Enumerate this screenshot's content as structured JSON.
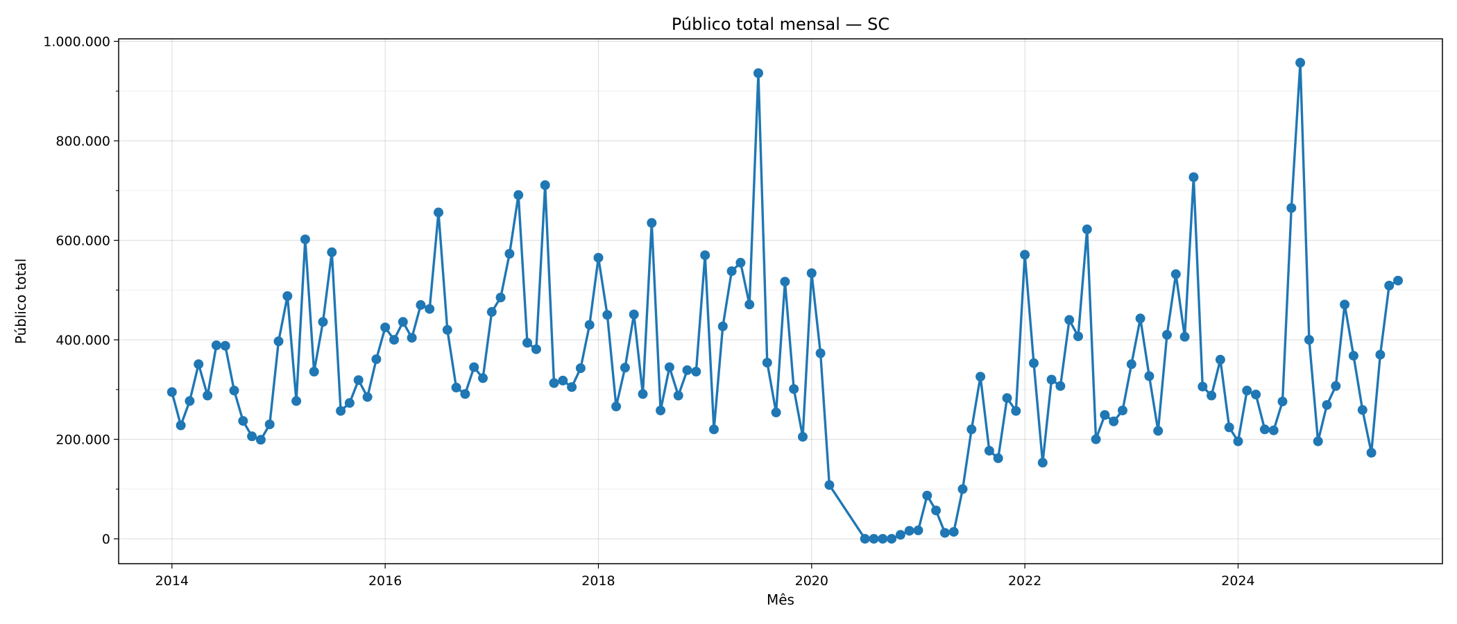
{
  "chart_data": {
    "type": "line",
    "title": "Público total mensal — SC",
    "xlabel": "Mês",
    "ylabel": "Público total",
    "x_ticks": [
      {
        "year": 2014,
        "label": "2014"
      },
      {
        "year": 2016,
        "label": "2016"
      },
      {
        "year": 2018,
        "label": "2018"
      },
      {
        "year": 2020,
        "label": "2020"
      },
      {
        "year": 2022,
        "label": "2022"
      },
      {
        "year": 2024,
        "label": "2024"
      }
    ],
    "y_ticks": [
      {
        "value": 0,
        "label": "0"
      },
      {
        "value": 200000,
        "label": "200.000"
      },
      {
        "value": 400000,
        "label": "400.000"
      },
      {
        "value": 600000,
        "label": "600.000"
      },
      {
        "value": 800000,
        "label": "800.000"
      },
      {
        "value": 1000000,
        "label": "1.000.000"
      }
    ],
    "xlim": [
      "2013-07",
      "2025-12"
    ],
    "ylim": [
      -50000,
      1005000
    ],
    "grid": true,
    "color": "#1f77b4",
    "series": [
      {
        "points": [
          [
            "2014-01",
            295000
          ],
          [
            "2014-02",
            228000
          ],
          [
            "2014-03",
            277000
          ],
          [
            "2014-04",
            351000
          ],
          [
            "2014-05",
            288000
          ],
          [
            "2014-06",
            389000
          ],
          [
            "2014-07",
            388000
          ],
          [
            "2014-08",
            298000
          ],
          [
            "2014-09",
            237000
          ],
          [
            "2014-10",
            206000
          ],
          [
            "2014-11",
            199000
          ],
          [
            "2014-12",
            230000
          ],
          [
            "2015-01",
            397000
          ],
          [
            "2015-02",
            488000
          ],
          [
            "2015-03",
            277000
          ],
          [
            "2015-04",
            602000
          ],
          [
            "2015-05",
            336000
          ],
          [
            "2015-06",
            436000
          ],
          [
            "2015-07",
            576000
          ],
          [
            "2015-08",
            257000
          ],
          [
            "2015-09",
            273000
          ],
          [
            "2015-10",
            319000
          ],
          [
            "2015-11",
            285000
          ],
          [
            "2015-12",
            361000
          ],
          [
            "2016-01",
            425000
          ],
          [
            "2016-02",
            400000
          ],
          [
            "2016-03",
            436000
          ],
          [
            "2016-04",
            404000
          ],
          [
            "2016-05",
            470000
          ],
          [
            "2016-06",
            462000
          ],
          [
            "2016-07",
            656000
          ],
          [
            "2016-08",
            420000
          ],
          [
            "2016-09",
            304000
          ],
          [
            "2016-10",
            291000
          ],
          [
            "2016-11",
            345000
          ],
          [
            "2016-12",
            323000
          ],
          [
            "2017-01",
            456000
          ],
          [
            "2017-02",
            485000
          ],
          [
            "2017-03",
            573000
          ],
          [
            "2017-04",
            691000
          ],
          [
            "2017-05",
            394000
          ],
          [
            "2017-06",
            381000
          ],
          [
            "2017-07",
            711000
          ],
          [
            "2017-08",
            313000
          ],
          [
            "2017-09",
            318000
          ],
          [
            "2017-10",
            305000
          ],
          [
            "2017-11",
            343000
          ],
          [
            "2017-12",
            430000
          ],
          [
            "2018-01",
            565000
          ],
          [
            "2018-02",
            450000
          ],
          [
            "2018-03",
            266000
          ],
          [
            "2018-04",
            344000
          ],
          [
            "2018-05",
            451000
          ],
          [
            "2018-06",
            291000
          ],
          [
            "2018-07",
            635000
          ],
          [
            "2018-08",
            258000
          ],
          [
            "2018-09",
            345000
          ],
          [
            "2018-10",
            288000
          ],
          [
            "2018-11",
            339000
          ],
          [
            "2018-12",
            336000
          ],
          [
            "2019-01",
            570000
          ],
          [
            "2019-02",
            220000
          ],
          [
            "2019-03",
            427000
          ],
          [
            "2019-04",
            538000
          ],
          [
            "2019-05",
            555000
          ],
          [
            "2019-06",
            471000
          ],
          [
            "2019-07",
            936000
          ],
          [
            "2019-08",
            354000
          ],
          [
            "2019-09",
            254000
          ],
          [
            "2019-10",
            517000
          ],
          [
            "2019-11",
            301000
          ],
          [
            "2019-12",
            205000
          ],
          [
            "2020-01",
            534000
          ],
          [
            "2020-02",
            373000
          ],
          [
            "2020-03",
            108000
          ],
          [
            "2020-07",
            0
          ],
          [
            "2020-08",
            0
          ],
          [
            "2020-09",
            0
          ],
          [
            "2020-10",
            0
          ],
          [
            "2020-11",
            8000
          ],
          [
            "2020-12",
            16000
          ],
          [
            "2021-01",
            17000
          ],
          [
            "2021-02",
            87000
          ],
          [
            "2021-03",
            57000
          ],
          [
            "2021-04",
            12000
          ],
          [
            "2021-05",
            14000
          ],
          [
            "2021-06",
            100000
          ],
          [
            "2021-07",
            220000
          ],
          [
            "2021-08",
            326000
          ],
          [
            "2021-09",
            177000
          ],
          [
            "2021-10",
            162000
          ],
          [
            "2021-11",
            283000
          ],
          [
            "2021-12",
            257000
          ],
          [
            "2022-01",
            571000
          ],
          [
            "2022-02",
            353000
          ],
          [
            "2022-03",
            153000
          ],
          [
            "2022-04",
            320000
          ],
          [
            "2022-05",
            307000
          ],
          [
            "2022-06",
            440000
          ],
          [
            "2022-07",
            407000
          ],
          [
            "2022-08",
            622000
          ],
          [
            "2022-09",
            200000
          ],
          [
            "2022-10",
            249000
          ],
          [
            "2022-11",
            236000
          ],
          [
            "2022-12",
            258000
          ],
          [
            "2023-01",
            351000
          ],
          [
            "2023-02",
            443000
          ],
          [
            "2023-03",
            327000
          ],
          [
            "2023-04",
            217000
          ],
          [
            "2023-05",
            410000
          ],
          [
            "2023-06",
            532000
          ],
          [
            "2023-07",
            406000
          ],
          [
            "2023-08",
            727000
          ],
          [
            "2023-09",
            306000
          ],
          [
            "2023-10",
            288000
          ],
          [
            "2023-11",
            360000
          ],
          [
            "2023-12",
            224000
          ],
          [
            "2024-01",
            196000
          ],
          [
            "2024-02",
            298000
          ],
          [
            "2024-03",
            290000
          ],
          [
            "2024-04",
            220000
          ],
          [
            "2024-05",
            218000
          ],
          [
            "2024-06",
            276000
          ],
          [
            "2024-07",
            665000
          ],
          [
            "2024-08",
            957000
          ],
          [
            "2024-09",
            400000
          ],
          [
            "2024-10",
            196000
          ],
          [
            "2024-11",
            269000
          ],
          [
            "2024-12",
            307000
          ],
          [
            "2025-01",
            471000
          ],
          [
            "2025-02",
            368000
          ],
          [
            "2025-03",
            259000
          ],
          [
            "2025-04",
            173000
          ],
          [
            "2025-05",
            370000
          ],
          [
            "2025-06",
            509000
          ],
          [
            "2025-07",
            519000
          ]
        ]
      }
    ]
  }
}
